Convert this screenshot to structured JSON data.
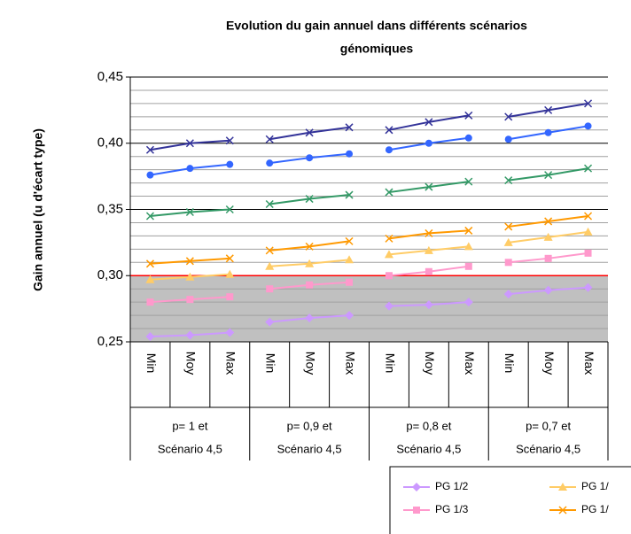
{
  "chart_data": {
    "type": "line",
    "title": [
      "Evolution du gain annuel dans différents scénarios",
      "génomiques"
    ],
    "y_label": "Gain annuel (u d'écart type)",
    "categories": [
      "Min",
      "Moy",
      "Max",
      "Min",
      "Moy",
      "Max",
      "Min",
      "Moy",
      "Max",
      "Min",
      "Moy",
      "Max"
    ],
    "groups": [
      [
        "p= 1 et",
        "Scénario 4,5"
      ],
      [
        "p= 0,9 et",
        "Scénario 4,5"
      ],
      [
        "p= 0,8 et",
        "Scénario 4,5"
      ],
      [
        "p= 0,7 et",
        "Scénario 4,5"
      ]
    ],
    "ylim": [
      0.25,
      0.45
    ],
    "yticks": [
      {
        "value": 0.25,
        "label": "0,25"
      },
      {
        "value": 0.3,
        "label": "0,30"
      },
      {
        "value": 0.35,
        "label": "0,35"
      },
      {
        "value": 0.4,
        "label": "0,40"
      },
      {
        "value": 0.45,
        "label": "0,45"
      }
    ],
    "grid": true,
    "reference_line": 0.3,
    "series": [
      {
        "color": "#333399",
        "marker": "cross",
        "values": [
          0.395,
          0.4,
          0.402,
          0.403,
          0.408,
          0.412,
          0.41,
          0.416,
          0.421,
          0.42,
          0.425,
          0.43
        ]
      },
      {
        "color": "#3366ff",
        "marker": "circle",
        "values": [
          0.376,
          0.381,
          0.384,
          0.385,
          0.389,
          0.392,
          0.395,
          0.4,
          0.404,
          0.403,
          0.408,
          0.413
        ]
      },
      {
        "color": "#339966",
        "marker": "cross",
        "values": [
          0.345,
          0.348,
          0.35,
          0.354,
          0.358,
          0.361,
          0.363,
          0.367,
          0.371,
          0.372,
          0.376,
          0.381
        ]
      },
      {
        "name": "PG 1/",
        "color": "#ff9900",
        "marker": "cross",
        "values": [
          0.309,
          0.311,
          0.313,
          0.319,
          0.322,
          0.326,
          0.328,
          0.332,
          0.334,
          0.337,
          0.341,
          0.345
        ]
      },
      {
        "name": "PG 1/",
        "color": "#ffcc66",
        "marker": "triangle",
        "values": [
          0.297,
          0.299,
          0.301,
          0.307,
          0.309,
          0.312,
          0.316,
          0.319,
          0.322,
          0.325,
          0.329,
          0.333
        ]
      },
      {
        "name": "PG 1/3",
        "color": "#ff99cc",
        "marker": "square",
        "values": [
          0.28,
          0.282,
          0.284,
          0.29,
          0.293,
          0.295,
          0.3,
          0.303,
          0.307,
          0.31,
          0.313,
          0.317
        ]
      },
      {
        "name": "PG 1/2",
        "color": "#cc99ff",
        "marker": "diamond",
        "values": [
          0.254,
          0.255,
          0.257,
          0.265,
          0.268,
          0.27,
          0.277,
          0.278,
          0.28,
          0.286,
          0.289,
          0.291
        ]
      }
    ]
  }
}
